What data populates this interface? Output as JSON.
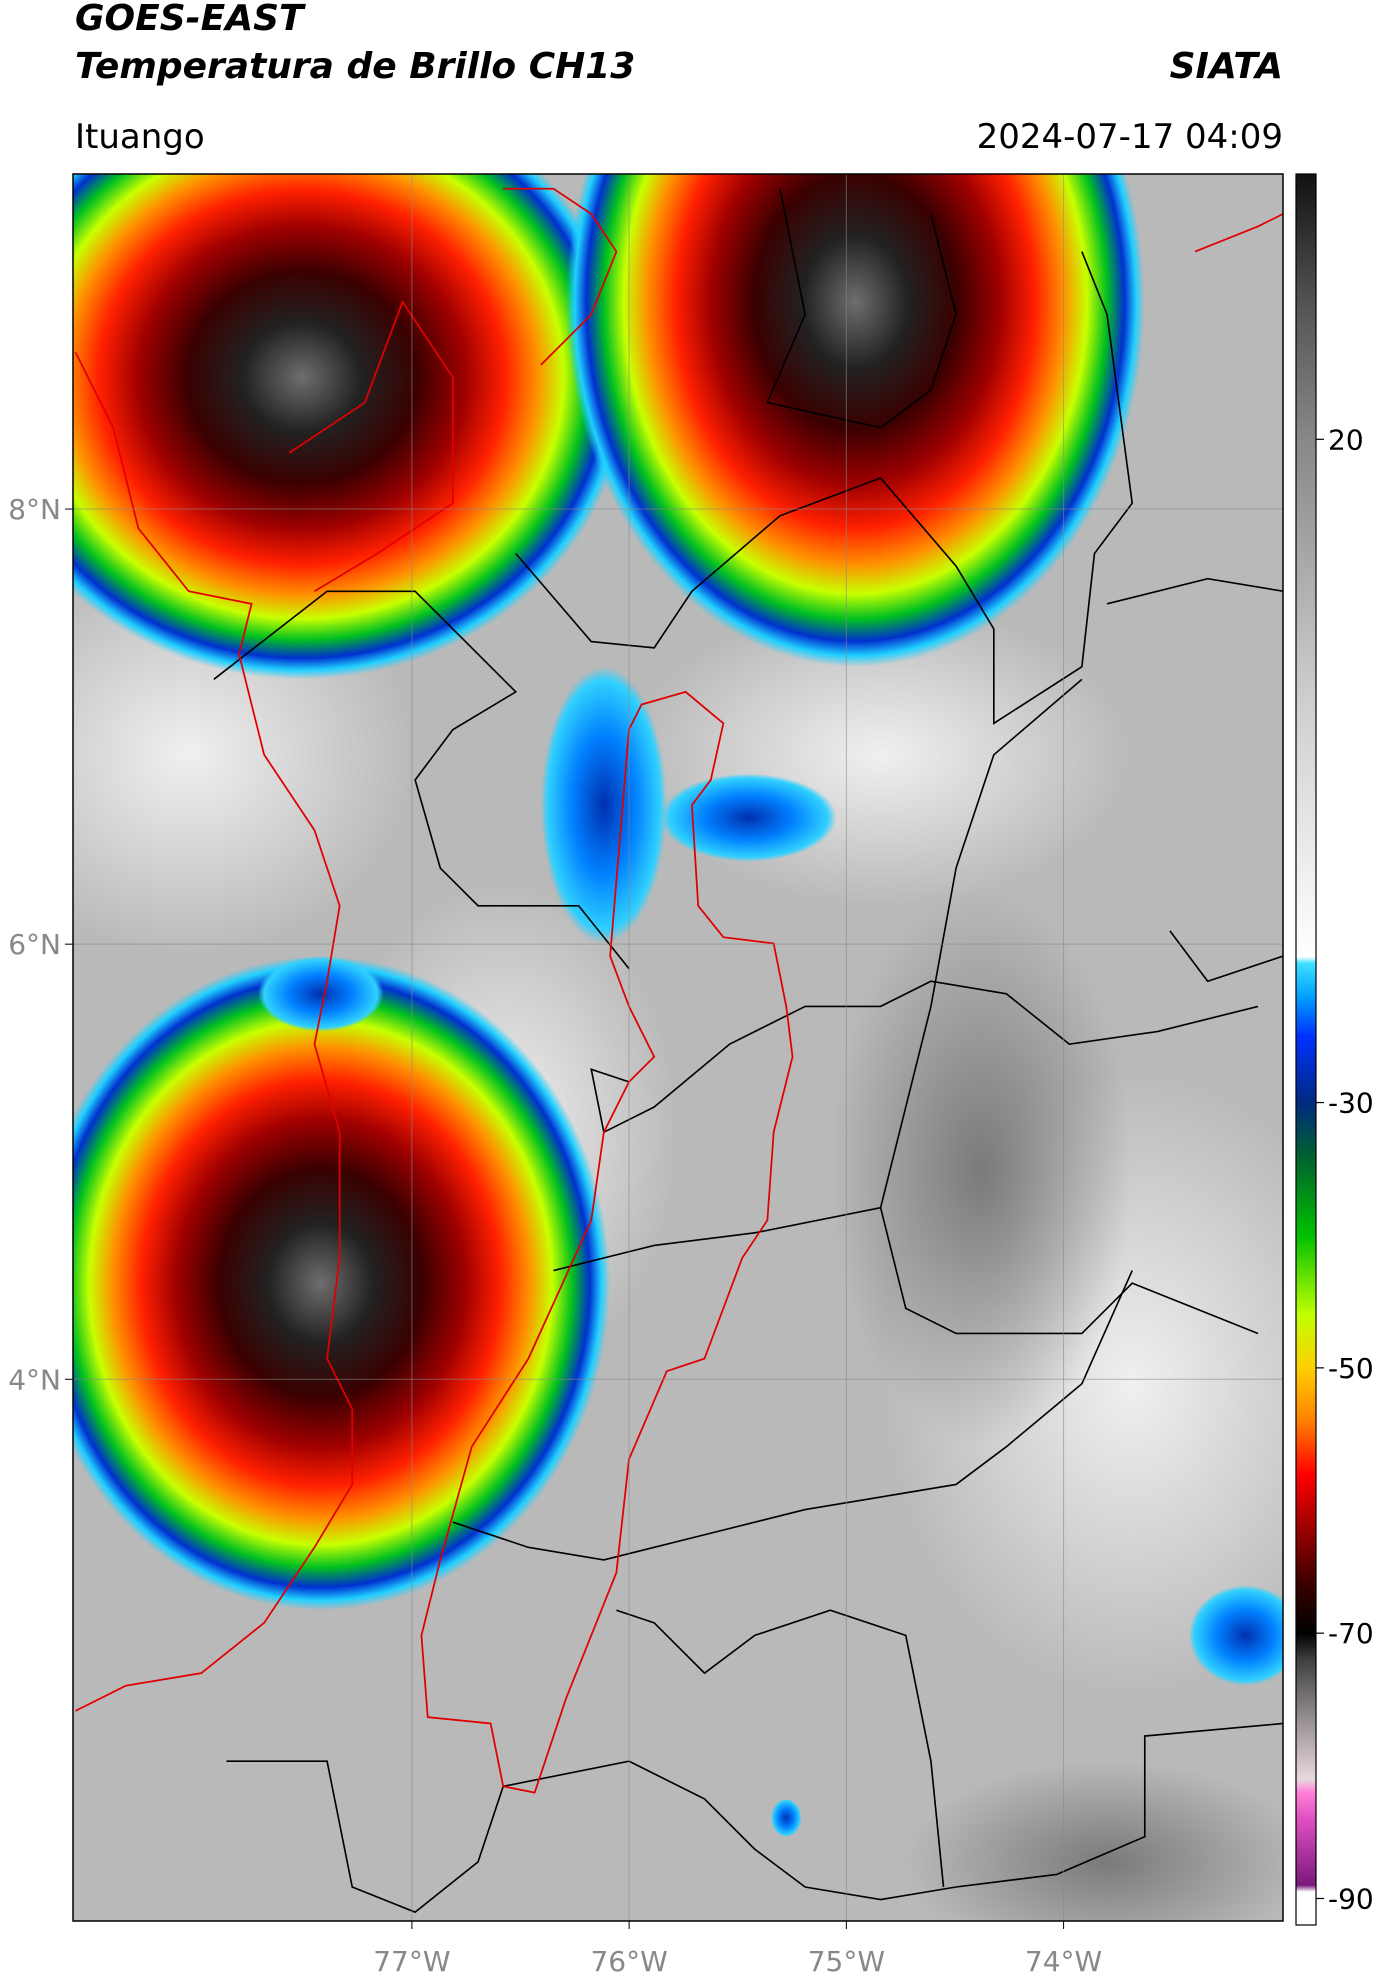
{
  "chart_data": {
    "type": "map",
    "title": "GOES-EAST",
    "subtitle": "Temperatura de Brillo CH13",
    "source": "SIATA",
    "location": "Ituango",
    "timestamp": "2024-07-17 04:09",
    "xlim": [
      -78.56,
      -72.99
    ],
    "ylim": [
      1.51,
      9.54
    ],
    "xticks": [
      {
        "value": -77,
        "label": "77°W"
      },
      {
        "value": -76,
        "label": "76°W"
      },
      {
        "value": -75,
        "label": "75°W"
      },
      {
        "value": -74,
        "label": "74°W"
      }
    ],
    "yticks": [
      {
        "value": 4,
        "label": "4°N"
      },
      {
        "value": 6,
        "label": "6°N"
      },
      {
        "value": 8,
        "label": "8°N"
      }
    ],
    "grid": true,
    "colorbar": {
      "lim": [
        -92,
        40
      ],
      "ticks": [
        -90,
        -70,
        -50,
        -30,
        20
      ],
      "colormap": [
        {
          "value": -92,
          "color": "#ffffff"
        },
        {
          "value": -89.5,
          "color": "#ffffff"
        },
        {
          "value": -89,
          "color": "#7a1a7a"
        },
        {
          "value": -84,
          "color": "#e050c0"
        },
        {
          "value": -82,
          "color": "#ff80d8"
        },
        {
          "value": -81,
          "color": "#e8d8e0"
        },
        {
          "value": -77,
          "color": "#a09898"
        },
        {
          "value": -72,
          "color": "#404040"
        },
        {
          "value": -70,
          "color": "#000000"
        },
        {
          "value": -66,
          "color": "#400000"
        },
        {
          "value": -62,
          "color": "#a00000"
        },
        {
          "value": -58,
          "color": "#ff0000"
        },
        {
          "value": -54,
          "color": "#ff8000"
        },
        {
          "value": -50,
          "color": "#ffd000"
        },
        {
          "value": -46,
          "color": "#c0ff00"
        },
        {
          "value": -40,
          "color": "#00c000"
        },
        {
          "value": -34,
          "color": "#006030"
        },
        {
          "value": -30,
          "color": "#002a80"
        },
        {
          "value": -25,
          "color": "#0030ff"
        },
        {
          "value": -22,
          "color": "#00a0ff"
        },
        {
          "value": -19.5,
          "color": "#40e0ff"
        },
        {
          "value": -19,
          "color": "#ffffff"
        },
        {
          "value": 0,
          "color": "#cfcfcf"
        },
        {
          "value": 20,
          "color": "#888888"
        },
        {
          "value": 30,
          "color": "#555555"
        },
        {
          "value": 40,
          "color": "#111111"
        }
      ]
    }
  }
}
